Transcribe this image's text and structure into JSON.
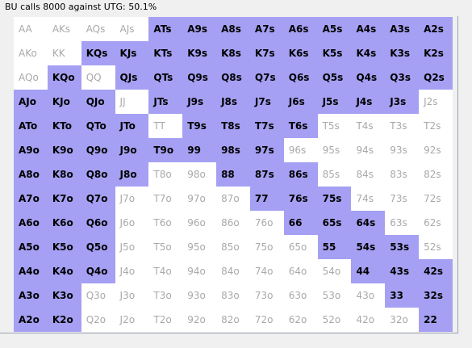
{
  "window": {
    "title": "BU calls 8000 against UTG: 50.1%"
  },
  "range_grid": {
    "selected_color": "#a5a0f3",
    "unselected_color": "#ffffff",
    "rows": [
      [
        {
          "label": "AA",
          "selected": false
        },
        {
          "label": "AKs",
          "selected": false
        },
        {
          "label": "AQs",
          "selected": false
        },
        {
          "label": "AJs",
          "selected": false
        },
        {
          "label": "ATs",
          "selected": true
        },
        {
          "label": "A9s",
          "selected": true
        },
        {
          "label": "A8s",
          "selected": true
        },
        {
          "label": "A7s",
          "selected": true
        },
        {
          "label": "A6s",
          "selected": true
        },
        {
          "label": "A5s",
          "selected": true
        },
        {
          "label": "A4s",
          "selected": true
        },
        {
          "label": "A3s",
          "selected": true
        },
        {
          "label": "A2s",
          "selected": true
        }
      ],
      [
        {
          "label": "AKo",
          "selected": false
        },
        {
          "label": "KK",
          "selected": false
        },
        {
          "label": "KQs",
          "selected": true
        },
        {
          "label": "KJs",
          "selected": true
        },
        {
          "label": "KTs",
          "selected": true
        },
        {
          "label": "K9s",
          "selected": true
        },
        {
          "label": "K8s",
          "selected": true
        },
        {
          "label": "K7s",
          "selected": true
        },
        {
          "label": "K6s",
          "selected": true
        },
        {
          "label": "K5s",
          "selected": true
        },
        {
          "label": "K4s",
          "selected": true
        },
        {
          "label": "K3s",
          "selected": true
        },
        {
          "label": "K2s",
          "selected": true
        }
      ],
      [
        {
          "label": "AQo",
          "selected": false
        },
        {
          "label": "KQo",
          "selected": true
        },
        {
          "label": "QQ",
          "selected": false
        },
        {
          "label": "QJs",
          "selected": true
        },
        {
          "label": "QTs",
          "selected": true
        },
        {
          "label": "Q9s",
          "selected": true
        },
        {
          "label": "Q8s",
          "selected": true
        },
        {
          "label": "Q7s",
          "selected": true
        },
        {
          "label": "Q6s",
          "selected": true
        },
        {
          "label": "Q5s",
          "selected": true
        },
        {
          "label": "Q4s",
          "selected": true
        },
        {
          "label": "Q3s",
          "selected": true
        },
        {
          "label": "Q2s",
          "selected": true
        }
      ],
      [
        {
          "label": "AJo",
          "selected": true
        },
        {
          "label": "KJo",
          "selected": true
        },
        {
          "label": "QJo",
          "selected": true
        },
        {
          "label": "JJ",
          "selected": false
        },
        {
          "label": "JTs",
          "selected": true
        },
        {
          "label": "J9s",
          "selected": true
        },
        {
          "label": "J8s",
          "selected": true
        },
        {
          "label": "J7s",
          "selected": true
        },
        {
          "label": "J6s",
          "selected": true
        },
        {
          "label": "J5s",
          "selected": true
        },
        {
          "label": "J4s",
          "selected": true
        },
        {
          "label": "J3s",
          "selected": true
        },
        {
          "label": "J2s",
          "selected": false
        }
      ],
      [
        {
          "label": "ATo",
          "selected": true
        },
        {
          "label": "KTo",
          "selected": true
        },
        {
          "label": "QTo",
          "selected": true
        },
        {
          "label": "JTo",
          "selected": true
        },
        {
          "label": "TT",
          "selected": false
        },
        {
          "label": "T9s",
          "selected": true
        },
        {
          "label": "T8s",
          "selected": true
        },
        {
          "label": "T7s",
          "selected": true
        },
        {
          "label": "T6s",
          "selected": true
        },
        {
          "label": "T5s",
          "selected": false
        },
        {
          "label": "T4s",
          "selected": false
        },
        {
          "label": "T3s",
          "selected": false
        },
        {
          "label": "T2s",
          "selected": false
        }
      ],
      [
        {
          "label": "A9o",
          "selected": true
        },
        {
          "label": "K9o",
          "selected": true
        },
        {
          "label": "Q9o",
          "selected": true
        },
        {
          "label": "J9o",
          "selected": true
        },
        {
          "label": "T9o",
          "selected": true
        },
        {
          "label": "99",
          "selected": true
        },
        {
          "label": "98s",
          "selected": true
        },
        {
          "label": "97s",
          "selected": true
        },
        {
          "label": "96s",
          "selected": false
        },
        {
          "label": "95s",
          "selected": false
        },
        {
          "label": "94s",
          "selected": false
        },
        {
          "label": "93s",
          "selected": false
        },
        {
          "label": "92s",
          "selected": false
        }
      ],
      [
        {
          "label": "A8o",
          "selected": true
        },
        {
          "label": "K8o",
          "selected": true
        },
        {
          "label": "Q8o",
          "selected": true
        },
        {
          "label": "J8o",
          "selected": true
        },
        {
          "label": "T8o",
          "selected": false
        },
        {
          "label": "98o",
          "selected": false
        },
        {
          "label": "88",
          "selected": true
        },
        {
          "label": "87s",
          "selected": true
        },
        {
          "label": "86s",
          "selected": true
        },
        {
          "label": "85s",
          "selected": false
        },
        {
          "label": "84s",
          "selected": false
        },
        {
          "label": "83s",
          "selected": false
        },
        {
          "label": "82s",
          "selected": false
        }
      ],
      [
        {
          "label": "A7o",
          "selected": true
        },
        {
          "label": "K7o",
          "selected": true
        },
        {
          "label": "Q7o",
          "selected": true
        },
        {
          "label": "J7o",
          "selected": false
        },
        {
          "label": "T7o",
          "selected": false
        },
        {
          "label": "97o",
          "selected": false
        },
        {
          "label": "87o",
          "selected": false
        },
        {
          "label": "77",
          "selected": true
        },
        {
          "label": "76s",
          "selected": true
        },
        {
          "label": "75s",
          "selected": true
        },
        {
          "label": "74s",
          "selected": false
        },
        {
          "label": "73s",
          "selected": false
        },
        {
          "label": "72s",
          "selected": false
        }
      ],
      [
        {
          "label": "A6o",
          "selected": true
        },
        {
          "label": "K6o",
          "selected": true
        },
        {
          "label": "Q6o",
          "selected": true
        },
        {
          "label": "J6o",
          "selected": false
        },
        {
          "label": "T6o",
          "selected": false
        },
        {
          "label": "96o",
          "selected": false
        },
        {
          "label": "86o",
          "selected": false
        },
        {
          "label": "76o",
          "selected": false
        },
        {
          "label": "66",
          "selected": true
        },
        {
          "label": "65s",
          "selected": true
        },
        {
          "label": "64s",
          "selected": true
        },
        {
          "label": "63s",
          "selected": false
        },
        {
          "label": "62s",
          "selected": false
        }
      ],
      [
        {
          "label": "A5o",
          "selected": true
        },
        {
          "label": "K5o",
          "selected": true
        },
        {
          "label": "Q5o",
          "selected": true
        },
        {
          "label": "J5o",
          "selected": false
        },
        {
          "label": "T5o",
          "selected": false
        },
        {
          "label": "95o",
          "selected": false
        },
        {
          "label": "85o",
          "selected": false
        },
        {
          "label": "75o",
          "selected": false
        },
        {
          "label": "65o",
          "selected": false
        },
        {
          "label": "55",
          "selected": true
        },
        {
          "label": "54s",
          "selected": true
        },
        {
          "label": "53s",
          "selected": true
        },
        {
          "label": "52s",
          "selected": false
        }
      ],
      [
        {
          "label": "A4o",
          "selected": true
        },
        {
          "label": "K4o",
          "selected": true
        },
        {
          "label": "Q4o",
          "selected": true
        },
        {
          "label": "J4o",
          "selected": false
        },
        {
          "label": "T4o",
          "selected": false
        },
        {
          "label": "94o",
          "selected": false
        },
        {
          "label": "84o",
          "selected": false
        },
        {
          "label": "74o",
          "selected": false
        },
        {
          "label": "64o",
          "selected": false
        },
        {
          "label": "54o",
          "selected": false
        },
        {
          "label": "44",
          "selected": true
        },
        {
          "label": "43s",
          "selected": true
        },
        {
          "label": "42s",
          "selected": true
        }
      ],
      [
        {
          "label": "A3o",
          "selected": true
        },
        {
          "label": "K3o",
          "selected": true
        },
        {
          "label": "Q3o",
          "selected": false
        },
        {
          "label": "J3o",
          "selected": false
        },
        {
          "label": "T3o",
          "selected": false
        },
        {
          "label": "93o",
          "selected": false
        },
        {
          "label": "83o",
          "selected": false
        },
        {
          "label": "73o",
          "selected": false
        },
        {
          "label": "63o",
          "selected": false
        },
        {
          "label": "53o",
          "selected": false
        },
        {
          "label": "43o",
          "selected": false
        },
        {
          "label": "33",
          "selected": true
        },
        {
          "label": "32s",
          "selected": true
        }
      ],
      [
        {
          "label": "A2o",
          "selected": true
        },
        {
          "label": "K2o",
          "selected": true
        },
        {
          "label": "Q2o",
          "selected": false
        },
        {
          "label": "J2o",
          "selected": false
        },
        {
          "label": "T2o",
          "selected": false
        },
        {
          "label": "92o",
          "selected": false
        },
        {
          "label": "82o",
          "selected": false
        },
        {
          "label": "72o",
          "selected": false
        },
        {
          "label": "62o",
          "selected": false
        },
        {
          "label": "52o",
          "selected": false
        },
        {
          "label": "42o",
          "selected": false
        },
        {
          "label": "32o",
          "selected": false
        },
        {
          "label": "22",
          "selected": true
        }
      ]
    ]
  }
}
